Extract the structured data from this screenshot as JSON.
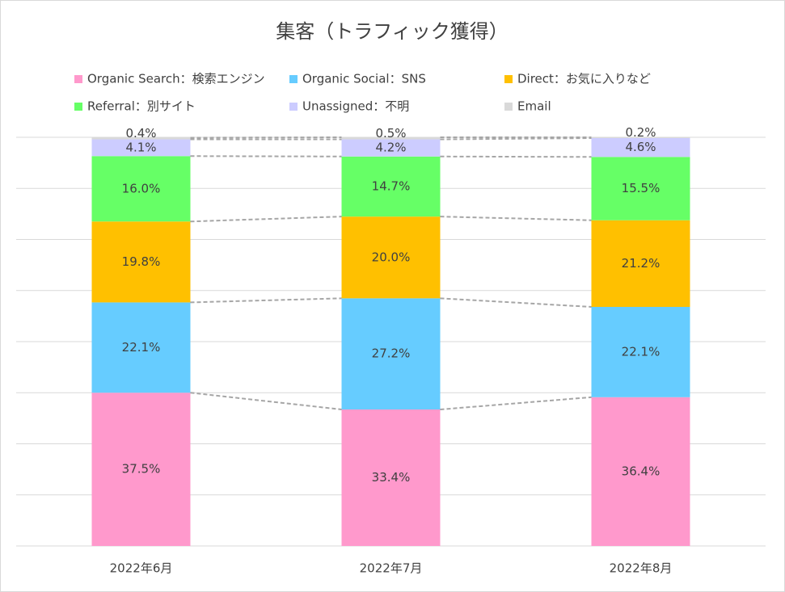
{
  "chart_data": {
    "type": "stacked-bar",
    "title": "集客（トラフィック獲得）",
    "categories": [
      "2022年6月",
      "2022年7月",
      "2022年8月"
    ],
    "series": [
      {
        "name": "Organic Search：検索エンジン",
        "color": "#ff99cc",
        "values": [
          37.5,
          33.4,
          36.4
        ],
        "value_labels": [
          "37.5%",
          "33.4%",
          "36.4%"
        ]
      },
      {
        "name": "Organic Social：SNS",
        "color": "#66ccff",
        "values": [
          22.1,
          27.2,
          22.1
        ],
        "value_labels": [
          "22.1%",
          "27.2%",
          "22.1%"
        ]
      },
      {
        "name": "Direct：お気に入りなど",
        "color": "#ffc000",
        "values": [
          19.8,
          20.0,
          21.2
        ],
        "value_labels": [
          "19.8%",
          "20.0%",
          "21.2%"
        ]
      },
      {
        "name": "Referral：別サイト",
        "color": "#66ff66",
        "values": [
          16.0,
          14.7,
          15.5
        ],
        "value_labels": [
          "16.0%",
          "14.7%",
          "15.5%"
        ]
      },
      {
        "name": "Unassigned：不明",
        "color": "#ccccff",
        "values": [
          4.1,
          4.2,
          4.6
        ],
        "value_labels": [
          "4.1%",
          "4.2%",
          "4.6%"
        ]
      },
      {
        "name": "Email",
        "color": "#d9d9d9",
        "values": [
          0.4,
          0.5,
          0.2
        ],
        "value_labels": [
          "0.4%",
          "0.5%",
          "0.2%"
        ]
      }
    ],
    "ylim": [
      0,
      100
    ],
    "yticks": [
      0,
      12.5,
      25,
      37.5,
      50,
      62.5,
      75,
      87.5,
      100
    ],
    "grid": true,
    "legend": "top"
  }
}
